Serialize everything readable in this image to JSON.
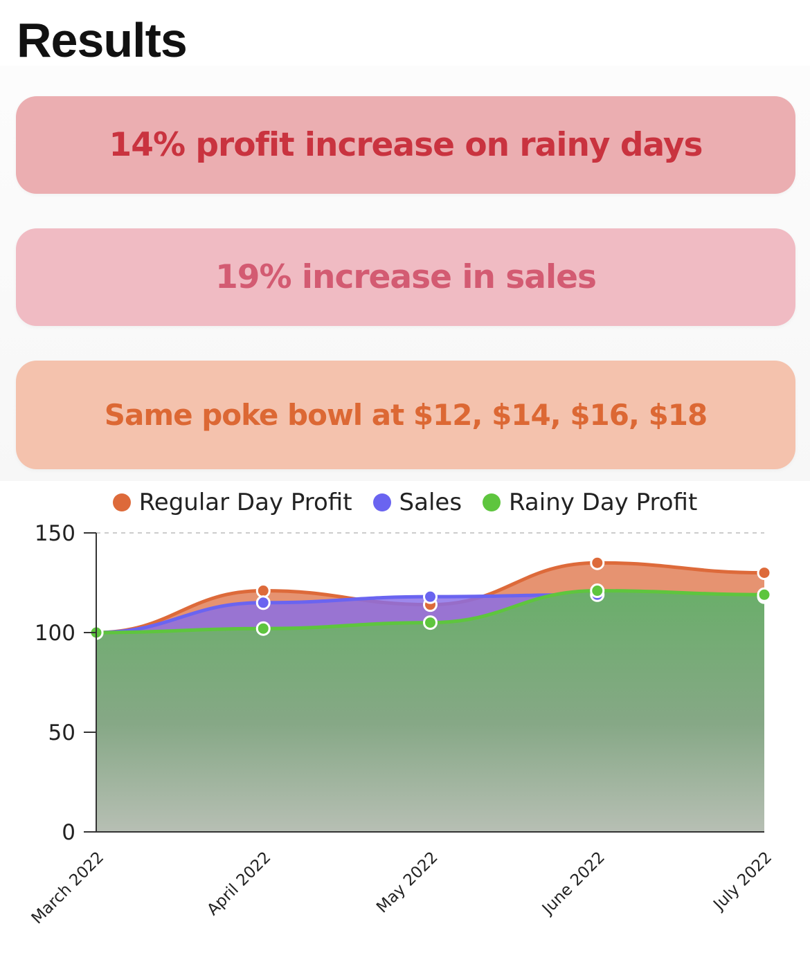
{
  "page": {
    "title": "Results"
  },
  "cards": [
    {
      "text": "14% profit increase on rainy days"
    },
    {
      "text": "19% increase in sales"
    },
    {
      "text": "Same poke bowl at $12, $14, $16, $18"
    }
  ],
  "colors": {
    "regular": "#dd6a3a",
    "sales": "#6a64f0",
    "rainy": "#5ec53e"
  },
  "chart_data": {
    "type": "area",
    "categories": [
      "March 2022",
      "April 2022",
      "May 2022",
      "June 2022",
      "July 2022"
    ],
    "series": [
      {
        "name": "Regular Day Profit",
        "values": [
          100,
          121,
          114,
          135,
          130
        ]
      },
      {
        "name": "Sales",
        "values": [
          100,
          115,
          118,
          119,
          118
        ]
      },
      {
        "name": "Rainy Day Profit",
        "values": [
          100,
          102,
          105,
          121,
          119
        ]
      }
    ],
    "yticks": [
      "0",
      "50",
      "100",
      "150"
    ],
    "ylim": [
      0,
      150
    ],
    "legend": "top-center",
    "grid": true
  }
}
